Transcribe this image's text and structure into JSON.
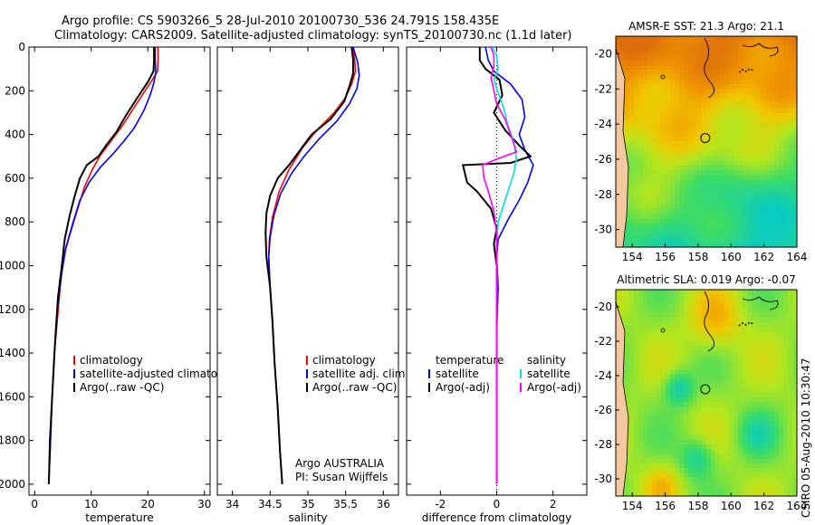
{
  "header": {
    "title_line1": "Argo profile: CS 5903266_5 28-Jul-2010 20100730_536 24.791S 158.435E",
    "title_line2": "Climatology: CARS2009. Satellite-adjusted climatology: synTS_20100730.nc (1.1d later)"
  },
  "side_label": "CSIRO 05-Aug-2010 10:30:47",
  "colors": {
    "climatology": "#ff0000",
    "satellite": "#0000ff",
    "argo": "#000000",
    "cyan": "#00e0e0",
    "magenta": "#ff00ff"
  },
  "chart_data": [
    {
      "id": "temperature",
      "type": "line",
      "xlabel": "temperature",
      "xlim": [
        -1,
        31
      ],
      "ylim": [
        2050,
        0
      ],
      "xticks": [
        0,
        10,
        20,
        30
      ],
      "yticks": [
        0,
        200,
        400,
        600,
        800,
        1000,
        1200,
        1400,
        1600,
        1800,
        2000
      ],
      "legend": [
        "climatology",
        "satellite-adjusted climatology",
        "Argo(..raw -QC)"
      ],
      "series": [
        {
          "name": "climatology",
          "color": "#ff0000",
          "points": [
            [
              21.8,
              0
            ],
            [
              21.8,
              60
            ],
            [
              21.7,
              110
            ],
            [
              20.8,
              150
            ],
            [
              19.5,
              200
            ],
            [
              17.5,
              280
            ],
            [
              15.5,
              360
            ],
            [
              13.5,
              430
            ],
            [
              11.5,
              500
            ],
            [
              10.2,
              560
            ],
            [
              8.8,
              640
            ],
            [
              7.6,
              740
            ],
            [
              6.2,
              860
            ],
            [
              5.1,
              960
            ],
            [
              4.5,
              1100
            ],
            [
              4.0,
              1250
            ],
            [
              3.5,
              1400
            ],
            [
              3.1,
              1600
            ],
            [
              2.8,
              1800
            ],
            [
              2.5,
              2000
            ]
          ]
        },
        {
          "name": "satellite-adjusted",
          "color": "#0000ff",
          "points": [
            [
              21.3,
              0
            ],
            [
              21.3,
              60
            ],
            [
              21.4,
              120
            ],
            [
              21.0,
              170
            ],
            [
              20.4,
              220
            ],
            [
              19.3,
              290
            ],
            [
              17.6,
              370
            ],
            [
              15.8,
              430
            ],
            [
              13.8,
              490
            ],
            [
              11.6,
              550
            ],
            [
              9.6,
              620
            ],
            [
              8.0,
              700
            ],
            [
              6.8,
              800
            ],
            [
              5.5,
              920
            ],
            [
              4.7,
              1050
            ],
            [
              4.0,
              1200
            ],
            [
              3.5,
              1400
            ],
            [
              3.1,
              1600
            ],
            [
              2.8,
              1800
            ],
            [
              2.5,
              2000
            ]
          ]
        },
        {
          "name": "argo",
          "color": "#000000",
          "points": [
            [
              21.1,
              0
            ],
            [
              21.1,
              60
            ],
            [
              21.0,
              110
            ],
            [
              20.0,
              160
            ],
            [
              18.2,
              230
            ],
            [
              16.2,
              310
            ],
            [
              14.4,
              390
            ],
            [
              12.6,
              450
            ],
            [
              11.3,
              500
            ],
            [
              9.2,
              540
            ],
            [
              8.0,
              600
            ],
            [
              7.1,
              680
            ],
            [
              6.2,
              770
            ],
            [
              5.3,
              880
            ],
            [
              4.8,
              1000
            ],
            [
              4.1,
              1150
            ],
            [
              3.6,
              1350
            ],
            [
              3.1,
              1600
            ],
            [
              2.7,
              1800
            ],
            [
              2.5,
              2000
            ]
          ]
        }
      ]
    },
    {
      "id": "salinity",
      "type": "line",
      "xlabel": "salinity",
      "xlim": [
        33.8,
        36.2
      ],
      "ylim": [
        2050,
        0
      ],
      "xticks": [
        34,
        34.5,
        35,
        35.5,
        36
      ],
      "legend": [
        "climatology",
        "satellite adj. clim.",
        "Argo(..raw -QC)"
      ],
      "annotation": [
        "Argo AUSTRALIA",
        "PI: Susan Wijffels"
      ],
      "series": [
        {
          "name": "climatology",
          "color": "#ff0000",
          "points": [
            [
              35.6,
              0
            ],
            [
              35.62,
              60
            ],
            [
              35.63,
              110
            ],
            [
              35.58,
              170
            ],
            [
              35.5,
              230
            ],
            [
              35.35,
              300
            ],
            [
              35.12,
              380
            ],
            [
              34.93,
              460
            ],
            [
              34.75,
              560
            ],
            [
              34.62,
              660
            ],
            [
              34.53,
              780
            ],
            [
              34.49,
              880
            ],
            [
              34.48,
              960
            ],
            [
              34.5,
              1100
            ],
            [
              34.53,
              1250
            ],
            [
              34.56,
              1450
            ],
            [
              34.6,
              1650
            ],
            [
              34.63,
              1850
            ],
            [
              34.66,
              2000
            ]
          ]
        },
        {
          "name": "satellite-adjusted",
          "color": "#0000ff",
          "points": [
            [
              35.6,
              0
            ],
            [
              35.66,
              70
            ],
            [
              35.68,
              130
            ],
            [
              35.65,
              190
            ],
            [
              35.55,
              260
            ],
            [
              35.38,
              340
            ],
            [
              35.15,
              420
            ],
            [
              34.95,
              500
            ],
            [
              34.78,
              580
            ],
            [
              34.64,
              670
            ],
            [
              34.55,
              770
            ],
            [
              34.5,
              870
            ],
            [
              34.48,
              960
            ],
            [
              34.5,
              1100
            ],
            [
              34.53,
              1250
            ],
            [
              34.56,
              1450
            ],
            [
              34.6,
              1650
            ],
            [
              34.63,
              1850
            ],
            [
              34.66,
              2000
            ]
          ]
        },
        {
          "name": "argo",
          "color": "#000000",
          "points": [
            [
              35.58,
              0
            ],
            [
              35.6,
              60
            ],
            [
              35.6,
              120
            ],
            [
              35.55,
              180
            ],
            [
              35.48,
              250
            ],
            [
              35.3,
              330
            ],
            [
              35.05,
              400
            ],
            [
              34.9,
              470
            ],
            [
              34.75,
              540
            ],
            [
              34.6,
              600
            ],
            [
              34.5,
              680
            ],
            [
              34.45,
              760
            ],
            [
              34.44,
              850
            ],
            [
              34.45,
              960
            ],
            [
              34.5,
              1100
            ],
            [
              34.53,
              1250
            ],
            [
              34.56,
              1450
            ],
            [
              34.6,
              1650
            ],
            [
              34.63,
              1850
            ],
            [
              34.66,
              2000
            ]
          ]
        }
      ]
    },
    {
      "id": "difference",
      "type": "line",
      "xlabel": "difference from climatology",
      "xlim": [
        -3.2,
        3.2
      ],
      "ylim": [
        2050,
        0
      ],
      "xticks": [
        -2,
        0,
        2
      ],
      "legend_left": {
        "title": "temperature",
        "items": [
          "satellite",
          "Argo(-adj)"
        ]
      },
      "legend_right": {
        "title": "salinity",
        "items": [
          "satellite",
          "Argo(-adj)"
        ]
      },
      "series": [
        {
          "name": "temp-satellite",
          "color": "#0000ff",
          "points": [
            [
              -0.4,
              0
            ],
            [
              -0.3,
              60
            ],
            [
              -0.1,
              110
            ],
            [
              0.5,
              170
            ],
            [
              0.9,
              240
            ],
            [
              1.0,
              320
            ],
            [
              0.8,
              400
            ],
            [
              1.0,
              470
            ],
            [
              1.3,
              540
            ],
            [
              1.1,
              620
            ],
            [
              0.8,
              700
            ],
            [
              0.4,
              790
            ],
            [
              0.05,
              880
            ],
            [
              0,
              960
            ],
            [
              0.05,
              1100
            ],
            [
              0,
              1300
            ],
            [
              0,
              1600
            ],
            [
              0,
              2000
            ]
          ]
        },
        {
          "name": "temp-argo",
          "color": "#000000",
          "points": [
            [
              -0.6,
              0
            ],
            [
              -0.6,
              60
            ],
            [
              -0.4,
              100
            ],
            [
              0.1,
              150
            ],
            [
              0.2,
              220
            ],
            [
              -0.1,
              300
            ],
            [
              0.3,
              380
            ],
            [
              0.8,
              450
            ],
            [
              1.2,
              500
            ],
            [
              0.5,
              530
            ],
            [
              -1.2,
              540
            ],
            [
              -1.05,
              620
            ],
            [
              -0.7,
              660
            ],
            [
              -0.2,
              740
            ],
            [
              0,
              830
            ],
            [
              -0.1,
              900
            ],
            [
              0,
              1000
            ],
            [
              0,
              1200
            ],
            [
              0,
              1500
            ],
            [
              0,
              2000
            ]
          ]
        },
        {
          "name": "sal-satellite",
          "color": "#00e0e0",
          "points": [
            [
              -0.15,
              0
            ],
            [
              0,
              40
            ],
            [
              0.05,
              100
            ],
            [
              -0.1,
              150
            ],
            [
              0.05,
              210
            ],
            [
              0.25,
              280
            ],
            [
              0.4,
              360
            ],
            [
              0.6,
              430
            ],
            [
              0.7,
              510
            ],
            [
              0.6,
              580
            ],
            [
              0.35,
              680
            ],
            [
              0.05,
              800
            ],
            [
              0,
              900
            ],
            [
              0,
              1000
            ],
            [
              0,
              1300
            ],
            [
              0,
              1600
            ],
            [
              0,
              2000
            ]
          ]
        },
        {
          "name": "sal-argo",
          "color": "#ff00ff",
          "points": [
            [
              -0.2,
              0
            ],
            [
              -0.1,
              40
            ],
            [
              -0.1,
              90
            ],
            [
              -0.2,
              140
            ],
            [
              -0.1,
              200
            ],
            [
              0,
              260
            ],
            [
              0.3,
              330
            ],
            [
              0.6,
              440
            ],
            [
              0.7,
              480
            ],
            [
              0.05,
              510
            ],
            [
              -0.5,
              540
            ],
            [
              -0.45,
              600
            ],
            [
              -0.3,
              660
            ],
            [
              -0.1,
              750
            ],
            [
              0,
              860
            ],
            [
              0,
              1000
            ],
            [
              0,
              1300
            ],
            [
              0,
              1500
            ],
            [
              0,
              2000
            ]
          ]
        }
      ]
    },
    {
      "id": "sst_map",
      "type": "heatmap",
      "title": "AMSR-E SST: 21.3 Argo: 21.1",
      "xlim": [
        153,
        164
      ],
      "ylim": [
        -31,
        -19
      ],
      "xticks": [
        154,
        156,
        158,
        160,
        162,
        164
      ],
      "yticks": [
        -20,
        -22,
        -24,
        -26,
        -28,
        -30
      ],
      "marker": {
        "lon": 158.435,
        "lat": -24.791
      }
    },
    {
      "id": "sla_map",
      "type": "heatmap",
      "title": "Altimetric SLA: 0.019 Argo: -0.07",
      "xlim": [
        153,
        164
      ],
      "ylim": [
        -31,
        -19
      ],
      "xticks": [
        154,
        156,
        158,
        160,
        162,
        164
      ],
      "yticks": [
        -20,
        -22,
        -24,
        -26,
        -28,
        -30
      ],
      "marker": {
        "lon": 158.435,
        "lat": -24.791
      }
    }
  ]
}
